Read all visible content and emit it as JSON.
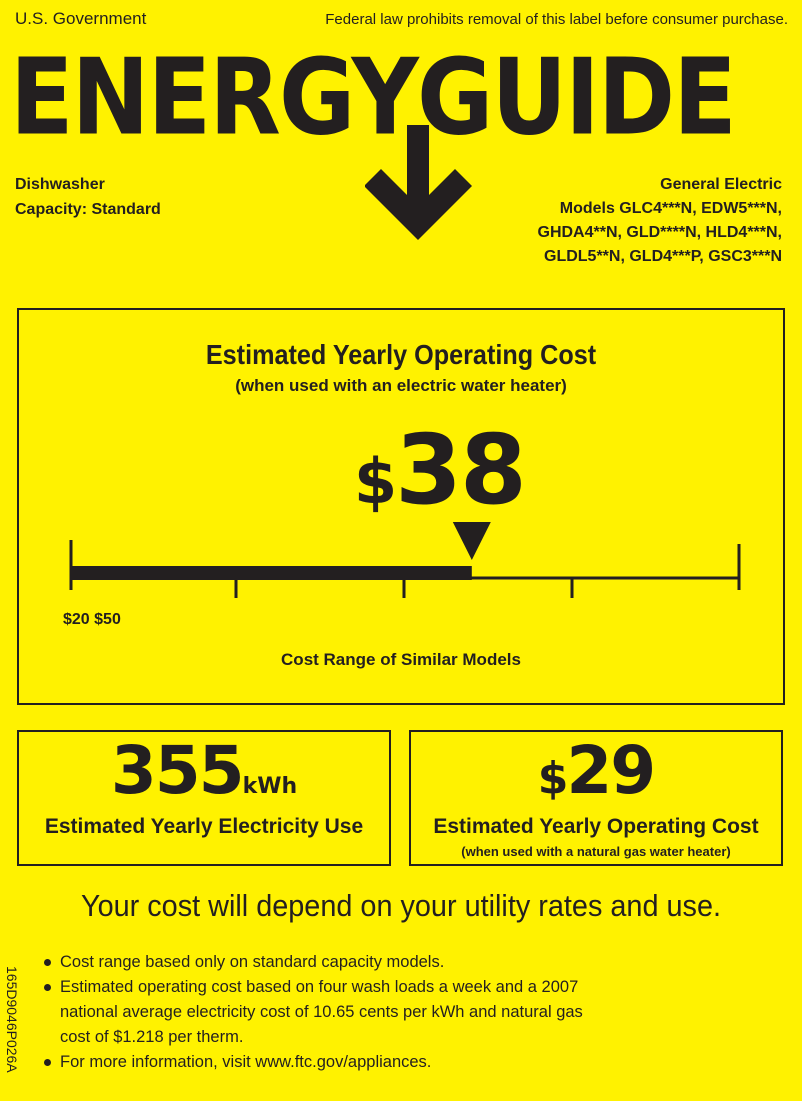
{
  "header": {
    "government": "U.S. Government",
    "notice": "Federal law prohibits removal of this label before consumer purchase.",
    "logo": "ENERGYGUIDE"
  },
  "product": {
    "type": "Dishwasher",
    "capacity": "Capacity: Standard"
  },
  "manufacturer": {
    "name": "General Electric",
    "models": [
      "Models GLC4***N, EDW5***N,",
      "GHDA4**N, GLD****N, HLD4***N,",
      "GLDL5**N, GLD4***P, GSC3***N"
    ]
  },
  "main": {
    "title": "Estimated Yearly Operating Cost",
    "subtitle": "(when used with an electric water heater)",
    "currency": "$",
    "cost": "38",
    "range_text": "$20 $50",
    "range_min": 20,
    "range_max": 50,
    "range_label": "Cost Range of Similar Models"
  },
  "electricity": {
    "value": "355",
    "unit": "kWh",
    "label": "Estimated Yearly Electricity Use"
  },
  "gas": {
    "currency": "$",
    "value": "29",
    "label": "Estimated Yearly Operating Cost",
    "subtitle": "(when used with a natural gas water heater)"
  },
  "footer": {
    "headline": "Your cost will depend on your utility rates and use.",
    "notes": [
      "Cost range based only on standard capacity models.",
      "Estimated operating cost based on four wash loads a week and a 2007 national average electricity cost of 10.65 cents per kWh and natural gas cost of $1.218 per therm.",
      "For more information, visit www.ftc.gov/appliances."
    ],
    "code": "165D9046P026A"
  },
  "colors": {
    "background": "#fff200",
    "ink": "#231f20"
  }
}
